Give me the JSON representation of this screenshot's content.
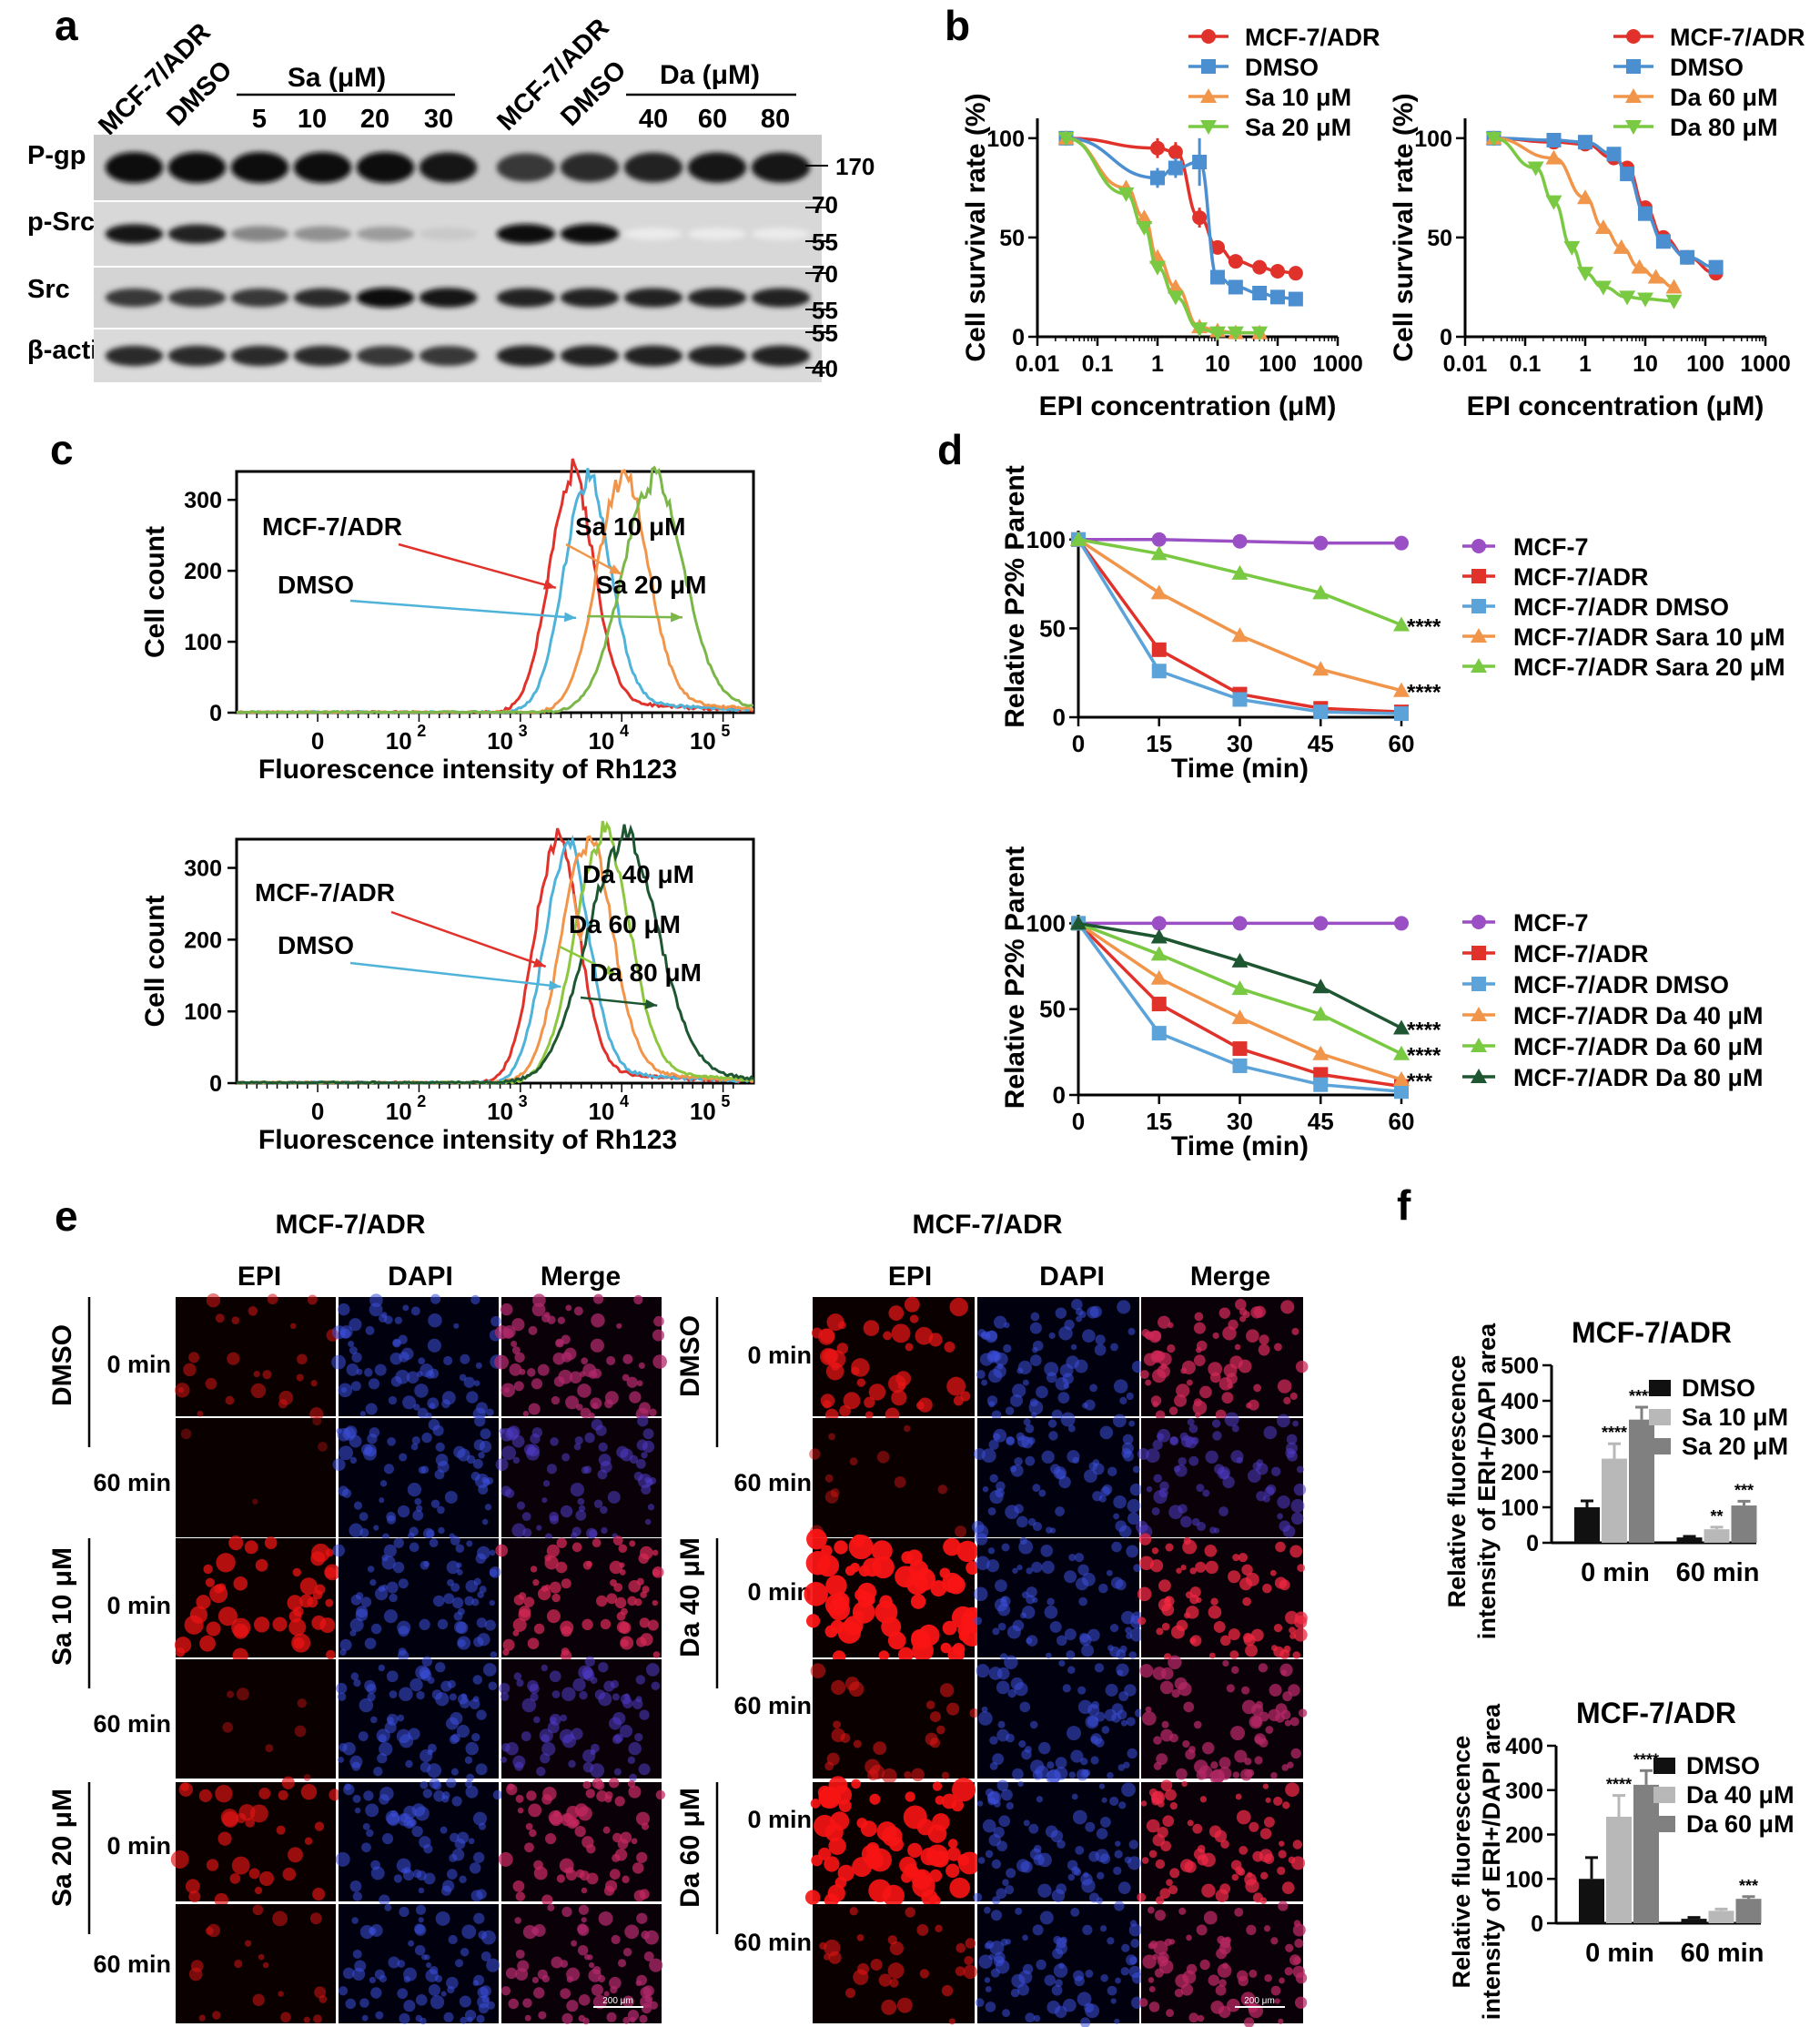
{
  "panels": {
    "a": "a",
    "b": "b",
    "c": "c",
    "d": "d",
    "e": "e",
    "f": "f"
  },
  "blot": {
    "left": {
      "lanes": [
        "MCF-7/ADR",
        "DMSO",
        "5",
        "10",
        "20",
        "30"
      ],
      "group": "Sa (μM)",
      "intensity": {
        "pgp": [
          1,
          1,
          1,
          1,
          1,
          0.95
        ],
        "psrc": [
          0.95,
          0.9,
          0.45,
          0.4,
          0.35,
          0.15
        ],
        "src": [
          0.8,
          0.8,
          0.8,
          0.85,
          1,
          0.95
        ],
        "actin": [
          0.85,
          0.85,
          0.85,
          0.85,
          0.8,
          0.8
        ]
      }
    },
    "right": {
      "lanes": [
        "MCF-7/ADR",
        "DMSO",
        "40",
        "60",
        "80"
      ],
      "group": "Da (μM)",
      "intensity": {
        "pgp": [
          0.8,
          0.85,
          0.9,
          0.95,
          0.95
        ],
        "psrc": [
          1,
          1,
          0,
          0,
          0
        ],
        "src": [
          0.9,
          0.9,
          0.9,
          0.9,
          0.9
        ],
        "actin": [
          0.9,
          0.9,
          0.9,
          0.9,
          0.9
        ]
      }
    },
    "rows": [
      "P-gp",
      "p-Src",
      "Src",
      "β-actin"
    ],
    "markers": [
      "170",
      "70",
      "55",
      "70",
      "55",
      "55",
      "40"
    ]
  },
  "chart_data": [
    {
      "id": "b1",
      "type": "line",
      "xscale": "log",
      "xlabel": "EPI concentration (μM)",
      "ylabel": "Cell survival rate (%)",
      "xticks": [
        "0.01",
        "0.1",
        "1",
        "10",
        "100",
        "1000"
      ],
      "yticks": [
        "0",
        "50",
        "100"
      ],
      "xlim": [
        0.01,
        1000
      ],
      "ylim": [
        0,
        110
      ],
      "series": [
        {
          "name": "MCF-7/ADR",
          "color": "#e0322a",
          "marker": "circle",
          "x": [
            0.03,
            1,
            2,
            5,
            10,
            20,
            50,
            100,
            200
          ],
          "y": [
            100,
            95,
            93,
            60,
            45,
            38,
            35,
            33,
            32
          ],
          "err": [
            0,
            5,
            5,
            5,
            0,
            0,
            0,
            0,
            0
          ]
        },
        {
          "name": "DMSO",
          "color": "#4b8fd0",
          "marker": "square",
          "x": [
            0.03,
            1,
            2,
            5,
            10,
            20,
            50,
            100,
            200
          ],
          "y": [
            100,
            80,
            85,
            88,
            30,
            25,
            22,
            20,
            19
          ],
          "err": [
            0,
            5,
            5,
            12,
            0,
            0,
            0,
            0,
            0
          ]
        },
        {
          "name": "Sa 10 μM",
          "color": "#f0954a",
          "marker": "triangle",
          "x": [
            0.03,
            0.3,
            0.6,
            1,
            2,
            5,
            10,
            20,
            50
          ],
          "y": [
            100,
            75,
            60,
            40,
            25,
            5,
            3,
            2,
            2
          ],
          "err": [
            0,
            3,
            3,
            3,
            0,
            0,
            0,
            0,
            0
          ]
        },
        {
          "name": "Sa 20 μM",
          "color": "#7ac943",
          "marker": "triangle-down",
          "x": [
            0.03,
            0.3,
            0.6,
            1,
            2,
            5,
            10,
            20,
            50
          ],
          "y": [
            100,
            72,
            55,
            35,
            20,
            4,
            2,
            2,
            2
          ],
          "err": [
            0,
            3,
            3,
            3,
            0,
            0,
            0,
            0,
            0
          ]
        }
      ]
    },
    {
      "id": "b2",
      "type": "line",
      "xscale": "log",
      "xlabel": "EPI concentration (μM)",
      "ylabel": "Cell survival rate (%)",
      "xticks": [
        "0.01",
        "0.1",
        "1",
        "10",
        "100",
        "1000"
      ],
      "yticks": [
        "0",
        "50",
        "100"
      ],
      "xlim": [
        0.01,
        1000
      ],
      "ylim": [
        0,
        110
      ],
      "series": [
        {
          "name": "MCF-7/ADR",
          "color": "#e0322a",
          "marker": "circle",
          "x": [
            0.03,
            0.3,
            1,
            3,
            5,
            10,
            20,
            50,
            150
          ],
          "y": [
            100,
            98,
            97,
            90,
            85,
            65,
            50,
            40,
            32
          ],
          "err": [
            0,
            0,
            0,
            0,
            0,
            0,
            0,
            0,
            0
          ]
        },
        {
          "name": "DMSO",
          "color": "#4b8fd0",
          "marker": "square",
          "x": [
            0.03,
            0.3,
            1,
            3,
            5,
            10,
            20,
            50,
            150
          ],
          "y": [
            100,
            99,
            98,
            92,
            82,
            62,
            48,
            40,
            35
          ],
          "err": [
            0,
            0,
            0,
            0,
            0,
            0,
            0,
            0,
            0
          ]
        },
        {
          "name": "Da 60 μM",
          "color": "#f0954a",
          "marker": "triangle",
          "x": [
            0.03,
            0.3,
            1,
            2,
            4,
            8,
            15,
            30
          ],
          "y": [
            100,
            90,
            70,
            55,
            45,
            35,
            30,
            25
          ],
          "err": [
            0,
            0,
            0,
            0,
            0,
            0,
            0,
            0
          ]
        },
        {
          "name": "Da 80 μM",
          "color": "#7ac943",
          "marker": "triangle-down",
          "x": [
            0.03,
            0.15,
            0.3,
            0.6,
            1,
            2,
            5,
            10,
            30
          ],
          "y": [
            100,
            85,
            68,
            45,
            32,
            25,
            20,
            19,
            18
          ],
          "err": [
            0,
            0,
            0,
            0,
            0,
            0,
            0,
            0,
            0
          ]
        }
      ]
    },
    {
      "id": "c1",
      "type": "line",
      "xlabel": "Fluorescence intensity of Rh123",
      "ylabel": "Cell count",
      "yticks": [
        "0",
        "100",
        "200",
        "300"
      ],
      "ylim": [
        0,
        340
      ],
      "xticks": [
        {
          "label": "0",
          "pos": 0
        },
        {
          "label": "10",
          "sup": "2",
          "pos": 0.8
        },
        {
          "label": "10",
          "sup": "3",
          "pos": 1.8
        },
        {
          "label": "10",
          "sup": "4",
          "pos": 2.8
        },
        {
          "label": "10",
          "sup": "5",
          "pos": 3.8
        }
      ],
      "xlim": [
        -0.8,
        4.3
      ],
      "series": [
        {
          "name": "MCF-7/ADR",
          "color": "#e0322a",
          "center": 2.5,
          "sd": 0.22,
          "peak": 320
        },
        {
          "name": "DMSO",
          "color": "#4fb3d9",
          "center": 2.65,
          "sd": 0.23,
          "peak": 318
        },
        {
          "name": "Sa 10 μM",
          "color": "#f0954a",
          "center": 3.0,
          "sd": 0.25,
          "peak": 325
        },
        {
          "name": "Sa 20 μM",
          "color": "#7ab648",
          "center": 3.3,
          "sd": 0.3,
          "peak": 320
        }
      ],
      "annotations": [
        {
          "text": "MCF-7/ADR",
          "series": "MCF-7/ADR"
        },
        {
          "text": "DMSO",
          "series": "DMSO"
        },
        {
          "text": "Sa 10 μM",
          "series": "Sa 10 μM"
        },
        {
          "text": "Sa 20 μM",
          "series": "Sa 20 μM"
        }
      ]
    },
    {
      "id": "c2",
      "type": "line",
      "xlabel": "Fluorescence intensity of Rh123",
      "ylabel": "Cell count",
      "yticks": [
        "0",
        "100",
        "200",
        "300"
      ],
      "ylim": [
        0,
        340
      ],
      "xticks": [
        {
          "label": "0",
          "pos": 0
        },
        {
          "label": "10",
          "sup": "2",
          "pos": 0.8
        },
        {
          "label": "10",
          "sup": "3",
          "pos": 1.8
        },
        {
          "label": "10",
          "sup": "4",
          "pos": 2.8
        },
        {
          "label": "10",
          "sup": "5",
          "pos": 3.8
        }
      ],
      "xlim": [
        -0.8,
        4.3
      ],
      "series": [
        {
          "name": "MCF-7/ADR",
          "color": "#e0322a",
          "center": 2.35,
          "sd": 0.22,
          "peak": 325
        },
        {
          "name": "DMSO",
          "color": "#4fb3d9",
          "center": 2.45,
          "sd": 0.22,
          "peak": 320
        },
        {
          "name": "Da 40 μM",
          "color": "#f0954a",
          "center": 2.65,
          "sd": 0.25,
          "peak": 330
        },
        {
          "name": "Da 60 μM",
          "color": "#8dc63f",
          "center": 2.8,
          "sd": 0.27,
          "peak": 335
        },
        {
          "name": "Da 80 μM",
          "color": "#1e5631",
          "center": 3.0,
          "sd": 0.35,
          "peak": 328
        }
      ],
      "annotations": [
        {
          "text": "MCF-7/ADR",
          "series": "MCF-7/ADR"
        },
        {
          "text": "DMSO",
          "series": "DMSO"
        },
        {
          "text": "Da 40 μM",
          "series": "Da 40 μM"
        },
        {
          "text": "Da 60 μM",
          "series": "Da 60 μM"
        },
        {
          "text": "Da 80 μM",
          "series": "Da 80 μM"
        }
      ]
    },
    {
      "id": "d1",
      "type": "line",
      "xlabel": "Time (min)",
      "ylabel": "Relative P2% Parent",
      "x": [
        0,
        15,
        30,
        45,
        60
      ],
      "xticks": [
        "0",
        "15",
        "30",
        "45",
        "60"
      ],
      "yticks": [
        "0",
        "50",
        "100"
      ],
      "ylim": [
        0,
        105
      ],
      "series": [
        {
          "name": "MCF-7",
          "color": "#9b4fc4",
          "marker": "circle",
          "values": [
            100,
            100,
            99,
            98,
            98
          ]
        },
        {
          "name": "MCF-7/ADR",
          "color": "#e0322a",
          "marker": "square",
          "values": [
            100,
            38,
            13,
            5,
            3
          ]
        },
        {
          "name": "MCF-7/ADR DMSO",
          "color": "#5ba3d9",
          "marker": "square",
          "values": [
            100,
            26,
            10,
            3,
            2
          ]
        },
        {
          "name": "MCF-7/ADR Sara 10 μM",
          "color": "#f0954a",
          "marker": "triangle",
          "values": [
            100,
            70,
            46,
            27,
            15
          ]
        },
        {
          "name": "MCF-7/ADR Sara 20 μM",
          "color": "#7ac943",
          "marker": "triangle",
          "values": [
            100,
            92,
            81,
            70,
            52
          ]
        }
      ],
      "significance": [
        {
          "series": "MCF-7/ADR Sara 20 μM",
          "label": "****"
        },
        {
          "series": "MCF-7/ADR Sara 10 μM",
          "label": "****"
        }
      ]
    },
    {
      "id": "d2",
      "type": "line",
      "xlabel": "Time (min)",
      "ylabel": "Relative P2% Parent",
      "x": [
        0,
        15,
        30,
        45,
        60
      ],
      "xticks": [
        "0",
        "15",
        "30",
        "45",
        "60"
      ],
      "yticks": [
        "0",
        "50",
        "100"
      ],
      "ylim": [
        0,
        105
      ],
      "series": [
        {
          "name": "MCF-7",
          "color": "#9b4fc4",
          "marker": "circle",
          "values": [
            100,
            100,
            100,
            100,
            100
          ]
        },
        {
          "name": "MCF-7/ADR",
          "color": "#e0322a",
          "marker": "square",
          "values": [
            100,
            53,
            27,
            12,
            5
          ]
        },
        {
          "name": "MCF-7/ADR DMSO",
          "color": "#5ba3d9",
          "marker": "square",
          "values": [
            100,
            36,
            17,
            6,
            2
          ]
        },
        {
          "name": "MCF-7/ADR Da 40 μM",
          "color": "#f0954a",
          "marker": "triangle",
          "values": [
            100,
            68,
            45,
            24,
            9
          ]
        },
        {
          "name": "MCF-7/ADR Da 60 μM",
          "color": "#7ac943",
          "marker": "triangle",
          "values": [
            100,
            82,
            62,
            47,
            24
          ]
        },
        {
          "name": "MCF-7/ADR Da 80 μM",
          "color": "#1e5631",
          "marker": "triangle",
          "values": [
            100,
            92,
            78,
            63,
            39
          ]
        }
      ],
      "significance": [
        {
          "series": "MCF-7/ADR Da 80 μM",
          "label": "****"
        },
        {
          "series": "MCF-7/ADR Da 60 μM",
          "label": "****"
        },
        {
          "series": "MCF-7/ADR Da 40 μM",
          "label": "***"
        }
      ]
    },
    {
      "id": "f1",
      "type": "bar",
      "title": "MCF-7/ADR",
      "ylabel": "Relative fluorescence intensity of ERI+/DAPI area",
      "categories": [
        "0 min",
        "60 min"
      ],
      "yticks": [
        "0",
        "100",
        "200",
        "300",
        "400",
        "500"
      ],
      "ylim": [
        0,
        500
      ],
      "series": [
        {
          "name": "DMSO",
          "color": "#111111",
          "values": [
            100,
            15
          ],
          "err": [
            18,
            3
          ],
          "sig": [
            "",
            ""
          ]
        },
        {
          "name": "Sa 10 μM",
          "color": "#b8b8b8",
          "values": [
            237,
            38
          ],
          "err": [
            42,
            6
          ],
          "sig": [
            "****",
            "**"
          ]
        },
        {
          "name": "Sa 20 μM",
          "color": "#808080",
          "values": [
            347,
            105
          ],
          "err": [
            35,
            12
          ],
          "sig": [
            "****",
            "***"
          ]
        }
      ]
    },
    {
      "id": "f2",
      "type": "bar",
      "title": "MCF-7/ADR",
      "ylabel": "Relative fluorescence intensity of ERI+/DAPI area",
      "categories": [
        "0 min",
        "60 min"
      ],
      "yticks": [
        "0",
        "100",
        "200",
        "300",
        "400"
      ],
      "ylim": [
        0,
        400
      ],
      "series": [
        {
          "name": "DMSO",
          "color": "#111111",
          "values": [
            100,
            10
          ],
          "err": [
            48,
            3
          ],
          "sig": [
            "",
            ""
          ]
        },
        {
          "name": "Da 40 μM",
          "color": "#b8b8b8",
          "values": [
            240,
            28
          ],
          "err": [
            48,
            4
          ],
          "sig": [
            "****",
            ""
          ]
        },
        {
          "name": "Da 60 μM",
          "color": "#808080",
          "values": [
            312,
            55
          ],
          "err": [
            32,
            5
          ],
          "sig": [
            "****",
            "***"
          ]
        }
      ]
    }
  ],
  "micro": {
    "left": {
      "title": "MCF-7/ADR",
      "channels": [
        "EPI",
        "DAPI",
        "Merge"
      ],
      "groups": [
        "DMSO",
        "Sa 10 μM",
        "Sa 20 μM"
      ],
      "times": [
        "0 min",
        "60 min"
      ],
      "epi_intensity": [
        0.25,
        0.0,
        0.6,
        0.1,
        0.45,
        0.25
      ]
    },
    "right": {
      "title": "MCF-7/ADR",
      "channels": [
        "EPI",
        "DAPI",
        "Merge"
      ],
      "groups": [
        "DMSO",
        "Da 40 μM",
        "Da 60 μM"
      ],
      "times": [
        "0 min",
        "60 min"
      ],
      "epi_intensity": [
        0.55,
        0.15,
        0.9,
        0.3,
        0.85,
        0.35
      ]
    },
    "scalebar": "200 μm"
  }
}
